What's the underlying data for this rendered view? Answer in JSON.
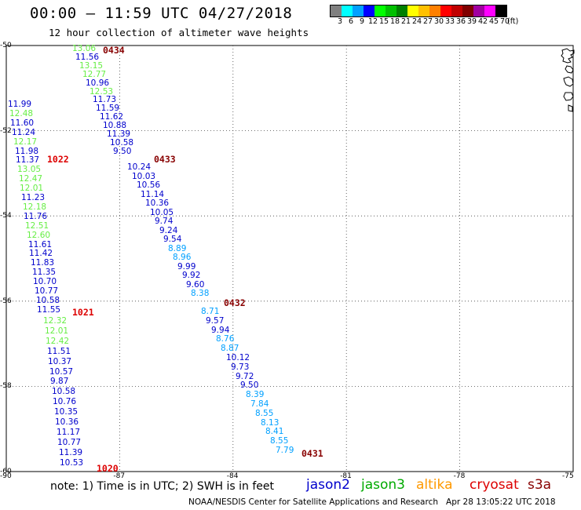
{
  "header": {
    "title": "00:00 – 11:59 UTC 04/27/2018",
    "subtitle": "12 hour collection of altimeter wave heights"
  },
  "legend": {
    "unit": "(ft)",
    "bins": [
      {
        "label": "3",
        "color": "#808080"
      },
      {
        "label": "6",
        "color": "#00ffff"
      },
      {
        "label": "9",
        "color": "#00a0ff"
      },
      {
        "label": "12",
        "color": "#0000ff"
      },
      {
        "label": "15",
        "color": "#00ff00"
      },
      {
        "label": "18",
        "color": "#00c000"
      },
      {
        "label": "21",
        "color": "#008000"
      },
      {
        "label": "24",
        "color": "#ffff00"
      },
      {
        "label": "27",
        "color": "#ffc000"
      },
      {
        "label": "30",
        "color": "#ff8000"
      },
      {
        "label": "33",
        "color": "#ff0000"
      },
      {
        "label": "36",
        "color": "#c00000"
      },
      {
        "label": "39",
        "color": "#800000"
      },
      {
        "label": "42",
        "color": "#a000a0"
      },
      {
        "label": "45",
        "color": "#ff00ff"
      },
      {
        "label": "70",
        "color": "#000000"
      }
    ]
  },
  "axes": {
    "lat_labels": [
      "-50",
      "-52",
      "-54",
      "-56",
      "-58",
      "-60"
    ],
    "lon_labels": [
      "-90",
      "-87",
      "-84",
      "-81",
      "-78",
      "-75"
    ]
  },
  "colors": {
    "jason2": "#0000cc",
    "jason3": "#00aa00",
    "altika": "#ff9900",
    "cryosat": "#dd0000",
    "s3a": "#880000",
    "lightblue": "#00a0ff",
    "lightgreen": "#66ee44"
  },
  "tracks": [
    {
      "time_label": "0434",
      "values": [
        "13.06",
        "11.56",
        "13.15",
        "12.77",
        "10.96",
        "12.53",
        "11.73",
        "11.59",
        "11.62",
        "10.88",
        "11.39",
        "10.58",
        "9.50"
      ],
      "value_colors": [
        "lightgreen",
        "jason2",
        "lightgreen",
        "lightgreen",
        "jason2",
        "lightgreen",
        "jason2",
        "jason2",
        "jason2",
        "jason2",
        "jason2",
        "jason2",
        "jason2"
      ]
    },
    {
      "time_label": "0433",
      "values": [
        "10.24",
        "10.03",
        "10.56",
        "11.14",
        "10.36",
        "10.05",
        "9.74",
        "9.24",
        "9.54",
        "8.89",
        "8.96",
        "9.99",
        "9.92",
        "9.60",
        "8.38"
      ],
      "value_colors": [
        "jason2",
        "jason2",
        "jason2",
        "jason2",
        "jason2",
        "jason2",
        "jason2",
        "jason2",
        "jason2",
        "lightblue",
        "lightblue",
        "jason2",
        "jason2",
        "jason2",
        "lightblue"
      ]
    },
    {
      "time_label": "0432",
      "values": [
        "8.71",
        "9.57",
        "9.94",
        "8.76",
        "8.87",
        "10.12",
        "9.73",
        "9.72",
        "9.50",
        "8.39",
        "7.84",
        "8.55",
        "8.13",
        "8.41",
        "8.55",
        "7.79"
      ],
      "value_colors": [
        "lightblue",
        "jason2",
        "jason2",
        "lightblue",
        "lightblue",
        "jason2",
        "jason2",
        "jason2",
        "jason2",
        "lightblue",
        "lightblue",
        "lightblue",
        "lightblue",
        "lightblue",
        "lightblue",
        "lightblue"
      ]
    },
    {
      "time_label": "0431",
      "values": [],
      "value_colors": []
    },
    {
      "time_label": "1022",
      "values": [
        "11.99",
        "12.48",
        "11.60",
        "11.24",
        "12.17",
        "11.98",
        "11.37",
        "13.05",
        "12.47",
        "12.01",
        "11.23",
        "12.18",
        "11.76",
        "12.51",
        "12.60",
        "11.61",
        "11.42",
        "11.83",
        "11.35",
        "10.70",
        "10.77",
        "10.58",
        "11.55"
      ],
      "value_colors": [
        "jason2",
        "lightgreen",
        "jason2",
        "jason2",
        "lightgreen",
        "jason2",
        "jason2",
        "lightgreen",
        "lightgreen",
        "lightgreen",
        "jason2",
        "lightgreen",
        "jason2",
        "lightgreen",
        "lightgreen",
        "jason2",
        "jason2",
        "jason2",
        "jason2",
        "jason2",
        "jason2",
        "jason2",
        "jason2"
      ]
    },
    {
      "time_label": "1021",
      "values": [
        "12.32",
        "12.01",
        "12.42",
        "11.51",
        "10.37",
        "10.57",
        "9.87",
        "10.58",
        "10.76",
        "10.35",
        "10.36",
        "11.17",
        "10.77",
        "11.39",
        "10.53"
      ],
      "value_colors": [
        "lightgreen",
        "lightgreen",
        "lightgreen",
        "jason2",
        "jason2",
        "jason2",
        "jason2",
        "jason2",
        "jason2",
        "jason2",
        "jason2",
        "jason2",
        "jason2",
        "jason2",
        "jason2"
      ]
    },
    {
      "time_label": "1020",
      "values": [],
      "value_colors": []
    }
  ],
  "footer": {
    "note": "note: 1) Time is in UTC; 2) SWH is in feet",
    "satellites": [
      {
        "name": "jason2",
        "color": "#0000cc"
      },
      {
        "name": "jason3",
        "color": "#00aa00"
      },
      {
        "name": "altika",
        "color": "#ff9900"
      },
      {
        "name": "cryosat",
        "color": "#dd0000"
      },
      {
        "name": "s3a",
        "color": "#880000"
      }
    ],
    "credit": "NOAA/NESDIS Center for Satellite Applications and Research",
    "timestamp": "Apr 28 13:05:22 UTC 2018"
  }
}
